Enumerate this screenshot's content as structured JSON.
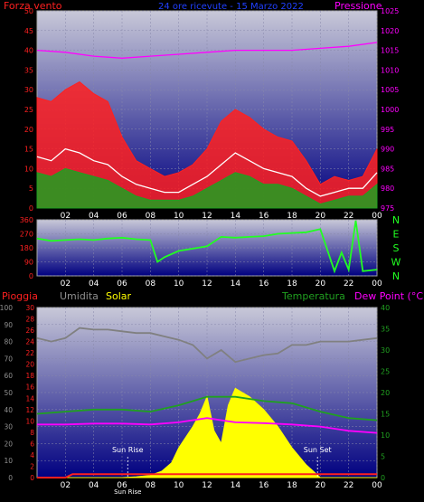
{
  "chart_data": [
    {
      "type": "line",
      "title": "24 ore ricevute - 15 Marzo 2022",
      "left_label": "Forza vento",
      "right_label": "Pressione",
      "colors": {
        "wind": "#ff2020",
        "gust": "#ffffff",
        "avg": "#20a020",
        "pressure": "#ff00ff",
        "left_axis": "#ff2020",
        "right_axis": "#ff00ff"
      },
      "ylim_left": [
        0,
        50
      ],
      "yticks_left": [
        "0",
        "5",
        "10",
        "15",
        "20",
        "25",
        "30",
        "35",
        "40",
        "45",
        "50"
      ],
      "ylim_right": [
        975,
        1025
      ],
      "yticks_right": [
        "975",
        "980",
        "985",
        "990",
        "995",
        "1000",
        "1005",
        "1010",
        "1015",
        "1020",
        "1025"
      ],
      "xticks": [
        "02",
        "04",
        "06",
        "08",
        "10",
        "12",
        "14",
        "16",
        "18",
        "20",
        "22",
        "00"
      ],
      "series": [
        {
          "name": "Forza vento",
          "x": [
            0,
            1,
            2,
            3,
            4,
            5,
            6,
            7,
            8,
            9,
            10,
            11,
            12,
            13,
            14,
            15,
            16,
            17,
            18,
            19,
            20,
            21,
            22,
            23,
            24
          ],
          "values": [
            28,
            27,
            30,
            32,
            29,
            27,
            18,
            12,
            10,
            8,
            9,
            11,
            15,
            22,
            25,
            23,
            20,
            18,
            17,
            12,
            6,
            8,
            7,
            8,
            15
          ]
        },
        {
          "name": "Raffica",
          "x": [
            0,
            1,
            2,
            3,
            4,
            5,
            6,
            7,
            8,
            9,
            10,
            11,
            12,
            13,
            14,
            15,
            16,
            17,
            18,
            19,
            20,
            21,
            22,
            23,
            24
          ],
          "values": [
            13,
            12,
            15,
            14,
            12,
            11,
            8,
            6,
            5,
            4,
            4,
            6,
            8,
            11,
            14,
            12,
            10,
            9,
            8,
            5,
            3,
            4,
            5,
            5,
            9
          ]
        },
        {
          "name": "Vento medio",
          "x": [
            0,
            1,
            2,
            3,
            4,
            5,
            6,
            7,
            8,
            9,
            10,
            11,
            12,
            13,
            14,
            15,
            16,
            17,
            18,
            19,
            20,
            21,
            22,
            23,
            24
          ],
          "values": [
            9,
            8,
            10,
            9,
            8,
            7,
            5,
            3,
            2,
            2,
            2,
            3,
            5,
            7,
            9,
            8,
            6,
            6,
            5,
            3,
            1,
            2,
            3,
            3,
            6
          ]
        },
        {
          "name": "Pressione",
          "x": [
            0,
            2,
            4,
            6,
            8,
            10,
            12,
            14,
            16,
            18,
            20,
            22,
            24
          ],
          "values": [
            1015,
            1014.5,
            1013.5,
            1013,
            1013.5,
            1014,
            1014.5,
            1015,
            1015,
            1015,
            1015.5,
            1016,
            1017
          ]
        }
      ]
    },
    {
      "type": "scatter",
      "title": "",
      "ylim": [
        0,
        360
      ],
      "yticks": [
        "0",
        "90",
        "180",
        "270",
        "360"
      ],
      "compass": [
        "N",
        "W",
        "S",
        "E",
        "N"
      ],
      "xticks": [
        "02",
        "04",
        "06",
        "08",
        "10",
        "12",
        "14",
        "16",
        "18",
        "20",
        "22",
        "00"
      ],
      "colors": {
        "direction": "#22ff22",
        "axis": "#ff2020",
        "compass": "#22ff22"
      },
      "series": [
        {
          "name": "Direzione vento",
          "x": [
            0,
            1,
            2,
            3,
            4,
            5,
            6,
            7,
            8,
            8.5,
            9,
            10,
            11,
            12,
            13,
            14,
            15,
            16,
            17,
            18,
            19,
            20,
            21,
            21.5,
            22,
            22.5,
            23,
            24
          ],
          "values": [
            240,
            225,
            230,
            235,
            230,
            240,
            245,
            235,
            230,
            90,
            120,
            160,
            175,
            190,
            250,
            245,
            250,
            255,
            270,
            275,
            280,
            300,
            30,
            150,
            40,
            355,
            30,
            40
          ]
        }
      ]
    },
    {
      "type": "area",
      "title": "",
      "labels": {
        "rain": "Pioggia",
        "humidity": "Umidita",
        "solar": "Solar",
        "temp": "Temperatura",
        "dew": "Dew Point (°C)"
      },
      "colors": {
        "rain": "#ff2020",
        "humidity": "#808080",
        "solar": "#ffff00",
        "temp": "#20a020",
        "dew": "#ff00ff"
      },
      "ylim_humidity": [
        0,
        100
      ],
      "yticks_humidity": [
        "0",
        "10",
        "20",
        "30",
        "40",
        "50",
        "60",
        "70",
        "80",
        "90",
        "100"
      ],
      "ylim_rain": [
        0,
        30
      ],
      "yticks_rain": [
        "0",
        "2",
        "4",
        "6",
        "8",
        "10",
        "12",
        "14",
        "16",
        "18",
        "20",
        "22",
        "24",
        "26",
        "28",
        "30"
      ],
      "ylim_temp": [
        0,
        40
      ],
      "yticks_temp": [
        "0",
        "5",
        "10",
        "15",
        "20",
        "25",
        "30",
        "35",
        "40"
      ],
      "xticks": [
        "02",
        "04",
        "06",
        "08",
        "10",
        "12",
        "14",
        "16",
        "18",
        "20",
        "22",
        "00"
      ],
      "annotations": [
        {
          "text": "Sun Rise",
          "x": 6.4
        },
        {
          "text": "Sun Set",
          "x": 19.8
        }
      ],
      "xmarker": "Sun Rise",
      "series": [
        {
          "name": "Umidita",
          "x": [
            0,
            1,
            2,
            3,
            4,
            5,
            6,
            7,
            8,
            9,
            10,
            11,
            12,
            13,
            14,
            15,
            16,
            17,
            18,
            19,
            20,
            21,
            22,
            23,
            24
          ],
          "values": [
            82,
            80,
            82,
            88,
            87,
            87,
            86,
            85,
            85,
            83,
            81,
            78,
            70,
            75,
            68,
            70,
            72,
            73,
            78,
            78,
            80,
            80,
            80,
            81,
            82
          ]
        },
        {
          "name": "Temperatura",
          "x": [
            0,
            2,
            4,
            6,
            8,
            10,
            12,
            14,
            16,
            18,
            20,
            22,
            24
          ],
          "values": [
            15,
            15.5,
            16,
            16,
            15.5,
            17,
            19,
            19,
            18,
            17.5,
            15.5,
            14,
            13.5
          ]
        },
        {
          "name": "Dew Point (°C)",
          "x": [
            0,
            2,
            4,
            6,
            8,
            10,
            12,
            14,
            16,
            18,
            20,
            22,
            24
          ],
          "values": [
            12.5,
            12.5,
            12.7,
            12.7,
            12.5,
            13,
            14,
            13,
            12.8,
            12.5,
            12,
            11,
            10.5
          ]
        },
        {
          "name": "Solar",
          "x": [
            0,
            6,
            7,
            8,
            8.8,
            9.5,
            10,
            11,
            11.5,
            12,
            12.5,
            13,
            13.5,
            14,
            14.5,
            15,
            16,
            17,
            18,
            19,
            20,
            24
          ],
          "values": [
            0,
            0,
            0.2,
            0.5,
            1.5,
            3.5,
            7,
            12,
            15,
            19,
            11,
            8,
            17,
            21,
            20,
            19,
            16,
            12,
            7,
            3,
            0,
            0
          ]
        },
        {
          "name": "Pioggia",
          "x": [
            0,
            2,
            2.5,
            24
          ],
          "values": [
            0,
            0,
            0.6,
            0.6
          ]
        }
      ]
    }
  ]
}
